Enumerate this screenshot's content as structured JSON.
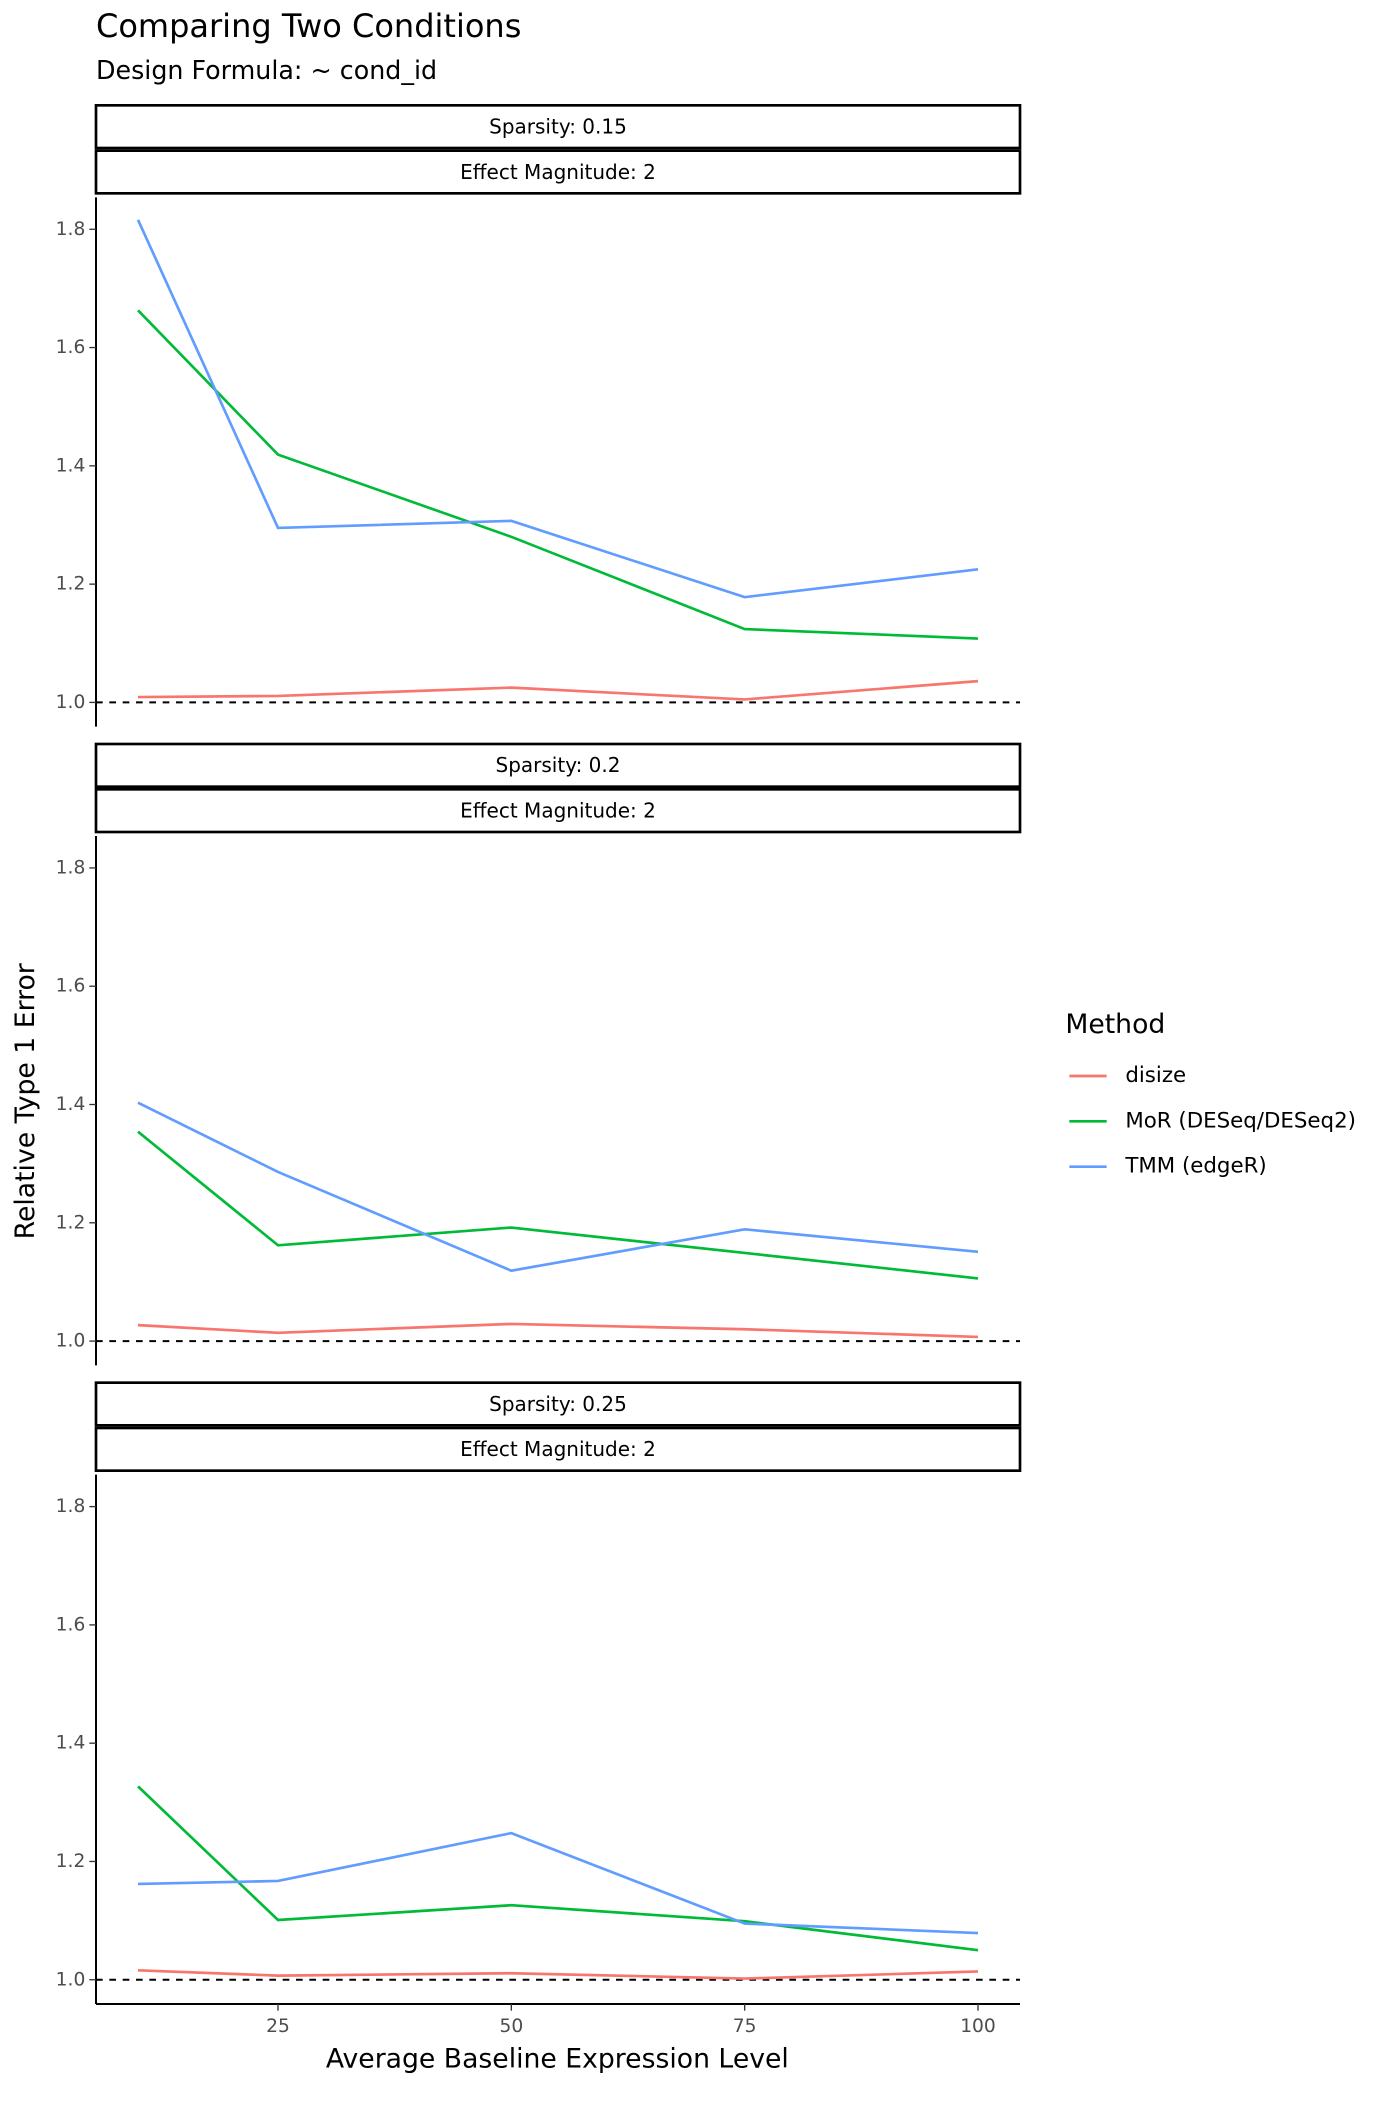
{
  "chart_data": {
    "type": "line",
    "title": "Comparing Two Conditions",
    "subtitle": "Design Formula: ~ cond_id",
    "x_label": "Average Baseline Expression Level",
    "y_label": "Relative Type 1 Error",
    "legend_title": "Method",
    "legend_position": "right",
    "x": [
      10,
      25,
      50,
      75,
      100
    ],
    "xlim": [
      5.5,
      104.5
    ],
    "xticks": [
      25,
      50,
      75,
      100
    ],
    "ylim": [
      0.959,
      1.854
    ],
    "yticks": [
      {
        "value": 1,
        "label": "1.0"
      },
      1.2,
      1.4,
      1.6,
      1.8
    ],
    "hline": 1,
    "grid": false,
    "panels": [
      {
        "strips": [
          "Sparsity: 0.15",
          "Effect Magnitude: 2"
        ],
        "series": [
          {
            "name": "disize",
            "color": "#f8766d",
            "values": [
              1.009,
              1.011,
              1.025,
              1.005,
              1.036
            ]
          },
          {
            "name": "MoR (DESeq/DESeq2)",
            "color": "#00ba38",
            "values": [
              1.663,
              1.419,
              1.28,
              1.124,
              1.108
            ]
          },
          {
            "name": "TMM (edgeR)",
            "color": "#619cff",
            "values": [
              1.816,
              1.295,
              1.307,
              1.178,
              1.225
            ]
          }
        ]
      },
      {
        "strips": [
          "Sparsity: 0.2",
          "Effect Magnitude: 2"
        ],
        "series": [
          {
            "name": "disize",
            "color": "#f8766d",
            "values": [
              1.027,
              1.014,
              1.029,
              1.02,
              1.007
            ]
          },
          {
            "name": "MoR (DESeq/DESeq2)",
            "color": "#00ba38",
            "values": [
              1.354,
              1.162,
              1.192,
              1.149,
              1.106
            ]
          },
          {
            "name": "TMM (edgeR)",
            "color": "#619cff",
            "values": [
              1.403,
              1.286,
              1.119,
              1.189,
              1.151
            ]
          }
        ]
      },
      {
        "strips": [
          "Sparsity: 0.25",
          "Effect Magnitude: 2"
        ],
        "series": [
          {
            "name": "disize",
            "color": "#f8766d",
            "values": [
              1.016,
              1.007,
              1.011,
              1.002,
              1.014
            ]
          },
          {
            "name": "MoR (DESeq/DESeq2)",
            "color": "#00ba38",
            "values": [
              1.327,
              1.101,
              1.126,
              1.099,
              1.05
            ]
          },
          {
            "name": "TMM (edgeR)",
            "color": "#619cff",
            "values": [
              1.162,
              1.167,
              1.248,
              1.095,
              1.079
            ]
          }
        ]
      }
    ]
  }
}
